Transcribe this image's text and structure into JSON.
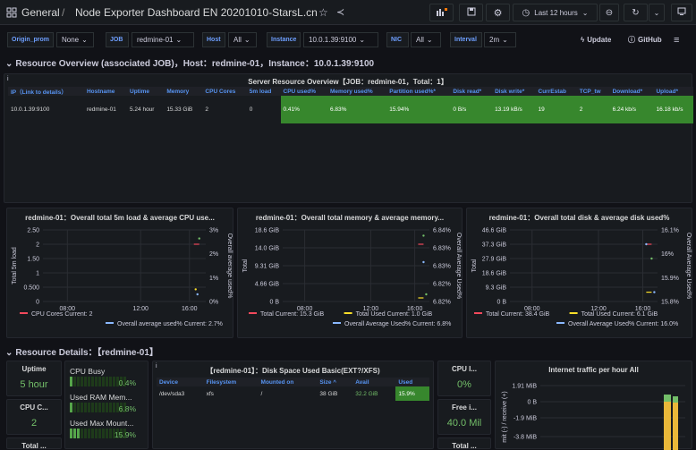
{
  "topbar": {
    "apps_icon": "apps-icon",
    "breadcrumb_folder": "General",
    "breadcrumb_sep": "/",
    "dashboard_title": "Node Exporter Dashboard EN 20201010-StarsL.cn",
    "time_range": "Last 12 hours"
  },
  "variables": [
    {
      "label": "Origin_prom",
      "value": "None"
    },
    {
      "label": "JOB",
      "value": "redmine-01"
    },
    {
      "label": "Host",
      "value": "All"
    },
    {
      "label": "Instance",
      "value": "10.0.1.39:9100"
    },
    {
      "label": "NIC",
      "value": "All"
    },
    {
      "label": "Interval",
      "value": "2m"
    }
  ],
  "links": {
    "update": "Update",
    "github": "GitHub"
  },
  "row1": {
    "title": "Resource Overview (associated JOB)，Host：redmine-01，Instance：10.0.1.39:9100"
  },
  "server_table": {
    "title": "Server Resource Overview【JOB：redmine-01，Total：1】",
    "headers": [
      "IP（Link to details）",
      "Hostname",
      "Uptime",
      "Memory",
      "CPU Cores",
      "5m load",
      "CPU used%",
      "Memory used%",
      "Partition used%*",
      "Disk read*",
      "Disk write*",
      "CurrEstab",
      "TCP_tw",
      "Download*",
      "Upload*"
    ],
    "row": [
      "10.0.1.39:9100",
      "redmine-01",
      "5.24 hour",
      "15.33 GiB",
      "2",
      "0",
      "0.41%",
      "6.83%",
      "15.94%",
      "0 B/s",
      "13.19 kB/s",
      "19",
      "2",
      "6.24 kb/s",
      "16.18 kb/s"
    ]
  },
  "charts": {
    "cpu": {
      "title": "redmine-01：Overall total 5m load & average CPU use...",
      "ylabel": "Total 5m load",
      "y2label": "Overall average used%",
      "yticks": [
        "2.50",
        "2",
        "1.50",
        "1",
        "0.500",
        "0"
      ],
      "y2ticks": [
        "3%",
        "2%",
        "1%",
        "0%"
      ],
      "xticks": [
        "08:00",
        "12:00",
        "16:00"
      ],
      "legend": [
        {
          "name": "CPU Cores",
          "current": "Current: 2",
          "color": "#f2495c"
        },
        {
          "name": "Overall average used%",
          "current": "Current: 2.7%",
          "color": "#8ab8ff"
        }
      ]
    },
    "mem": {
      "title": "redmine-01：Overall total memory & average memory...",
      "ylabel": "Total",
      "y2label": "Overall Average Used%",
      "yticks": [
        "18.6 GiB",
        "14.0 GiB",
        "9.31 GiB",
        "4.66 GiB",
        "0 B"
      ],
      "y2ticks": [
        "6.84%",
        "6.83%",
        "6.83%",
        "6.82%",
        "6.82%"
      ],
      "xticks": [
        "08:00",
        "12:00",
        "16:00"
      ],
      "legend": [
        {
          "name": "Total",
          "current": "Current: 15.3 GiB",
          "color": "#f2495c"
        },
        {
          "name": "Total Used",
          "current": "Current: 1.0 GiB",
          "color": "#fade2a"
        },
        {
          "name": "Overall Average Used%",
          "current": "Current: 6.8%",
          "color": "#8ab8ff"
        }
      ]
    },
    "disk": {
      "title": "redmine-01：Overall total disk & average disk used%",
      "ylabel": "Total",
      "y2label": "Overall Average Used%",
      "yticks": [
        "46.6 GiB",
        "37.3 GiB",
        "27.9 GiB",
        "18.6 GiB",
        "9.3 GiB",
        "0 B"
      ],
      "y2ticks": [
        "16.1%",
        "16%",
        "15.9%",
        "15.8%"
      ],
      "xticks": [
        "08:00",
        "12:00",
        "16:00"
      ],
      "legend": [
        {
          "name": "Total",
          "current": "Current: 38.4 GiB",
          "color": "#f2495c"
        },
        {
          "name": "Total Used",
          "current": "Current: 6.1 GiB",
          "color": "#fade2a"
        },
        {
          "name": "Overall Average Used%",
          "current": "Current: 16.0%",
          "color": "#8ab8ff"
        }
      ]
    }
  },
  "row2": {
    "title": "Resource Details：【redmine-01】"
  },
  "stats": {
    "uptime_title": "Uptime",
    "uptime_value": "5 hour",
    "cpuc_title": "CPU C...",
    "cpuc_value": "2",
    "total_title": "Total ...",
    "cpui_title": "CPU I...",
    "cpui_value": "0%",
    "free_title": "Free i...",
    "free_value": "40.0 Mil",
    "total2_title": "Total ..."
  },
  "bargauges": [
    {
      "label": "CPU Busy",
      "value": "0.4%"
    },
    {
      "label": "Used RAM Mem...",
      "value": "6.8%"
    },
    {
      "label": "Used Max Mount...",
      "value": "15.9%"
    }
  ],
  "disk_table": {
    "title": "【redmine-01】：Disk Space Used Basic(EXT?/XFS)",
    "headers": [
      "Device",
      "Filesystem",
      "Mounted on",
      "Size ^",
      "Avail",
      "Used"
    ],
    "row": [
      "/dev/sda3",
      "xfs",
      "/",
      "38 GiB",
      "32.2 GiB",
      "15.9%"
    ]
  },
  "traffic": {
    "title": "Internet traffic per hour All",
    "ylabel": "mit (-) / receive (+)",
    "yticks": [
      "1.91 MiB",
      "0 B",
      "-1.9 MiB",
      "-3.8 MiB"
    ]
  }
}
